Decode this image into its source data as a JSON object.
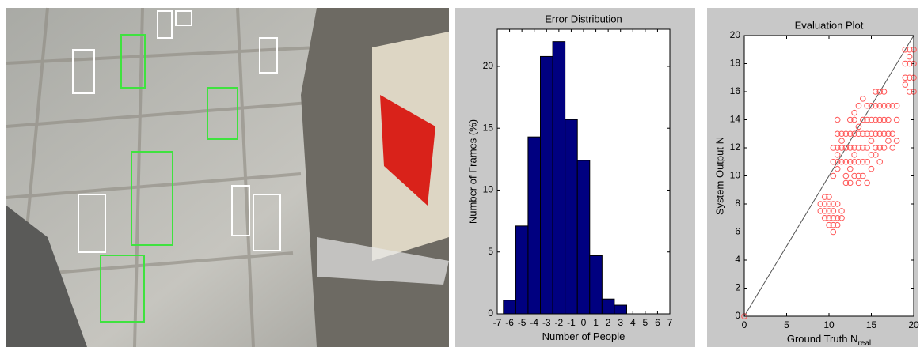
{
  "chart_data": [
    {
      "type": "bar",
      "title": "Error Distribution",
      "xlabel": "Number of People",
      "ylabel": "Number of Frames (%)",
      "x": [
        -6,
        -5,
        -4,
        -3,
        -2,
        -1,
        0,
        1,
        2,
        3
      ],
      "values": [
        1.1,
        7.1,
        14.3,
        20.8,
        22,
        15.7,
        12.4,
        4.7,
        1.2,
        0.7
      ],
      "color": "#000080",
      "xlim": [
        -7,
        7
      ],
      "xticks": [
        -7,
        -6,
        -5,
        -4,
        -3,
        -2,
        -1,
        0,
        1,
        2,
        3,
        4,
        5,
        6,
        7
      ],
      "ylim": [
        0,
        23
      ],
      "yticks": [
        0,
        5,
        10,
        15,
        20
      ]
    },
    {
      "type": "scatter",
      "title": "Evaluation Plot",
      "xlabel": "Ground Truth N",
      "xlabel_subscript": "real",
      "ylabel": "System Output N",
      "x": [
        0,
        9,
        9,
        9.5,
        9.5,
        9.5,
        9.5,
        10,
        10,
        10,
        10,
        10,
        10.5,
        10.5,
        10.5,
        10.5,
        10.5,
        10.5,
        10.5,
        10.5,
        11,
        11,
        11,
        11,
        11,
        11,
        11,
        11,
        11,
        11.5,
        11.5,
        11.5,
        11.5,
        11.5,
        11.5,
        12,
        12,
        12,
        12,
        12,
        12.5,
        12.5,
        12.5,
        12.5,
        12.5,
        12.5,
        13,
        13,
        13,
        13,
        13,
        13,
        13,
        13.5,
        13.5,
        13.5,
        13.5,
        13.5,
        13.5,
        13.5,
        14,
        14,
        14,
        14,
        14,
        14,
        14.5,
        14.5,
        14.5,
        14.5,
        14.5,
        14.5,
        15,
        15,
        15,
        15,
        15,
        15,
        15.5,
        15.5,
        15.5,
        15.5,
        15.5,
        15.5,
        16,
        16,
        16,
        16,
        16,
        16,
        16.5,
        16.5,
        16.5,
        16.5,
        16.5,
        17,
        17,
        17,
        17,
        17.5,
        17.5,
        17.5,
        18,
        18,
        18,
        19,
        19,
        19,
        19,
        19.5,
        19.5,
        19.5,
        19.5,
        19.5,
        20,
        20,
        20,
        20
      ],
      "values": [
        0,
        7.5,
        8,
        7,
        7.5,
        8,
        8.5,
        6.5,
        7,
        7.5,
        8,
        8.5,
        6,
        6.5,
        7,
        7.5,
        8,
        10,
        11,
        12,
        6.5,
        7,
        8,
        10.5,
        11,
        11.5,
        12,
        13,
        14,
        7,
        7.5,
        11,
        12,
        12.5,
        13,
        9.5,
        10,
        11,
        12,
        13,
        9.5,
        10.5,
        11,
        12,
        13,
        14,
        10,
        11,
        11.5,
        12,
        13,
        14,
        14.5,
        9.5,
        10,
        11,
        12,
        13,
        13.5,
        15,
        10,
        11,
        12,
        13,
        14,
        15.5,
        9.5,
        11,
        12,
        13,
        14,
        15,
        10.5,
        11.5,
        12.5,
        13,
        14,
        15,
        11.5,
        12,
        13,
        14,
        15,
        16,
        11,
        12,
        13,
        14,
        15,
        16,
        12,
        13,
        14,
        15,
        16,
        12.5,
        13,
        14,
        15,
        12,
        13,
        15,
        12.5,
        14,
        15,
        16.5,
        17,
        18,
        19,
        16,
        17,
        18,
        18.5,
        19,
        16,
        17,
        18,
        19
      ],
      "color": "#ff5555",
      "diagonal": true,
      "xlim": [
        0,
        20
      ],
      "xticks": [
        0,
        5,
        10,
        15,
        20
      ],
      "ylim": [
        0,
        20
      ],
      "yticks": [
        0,
        2,
        4,
        6,
        8,
        10,
        12,
        14,
        16,
        18,
        20
      ]
    }
  ]
}
